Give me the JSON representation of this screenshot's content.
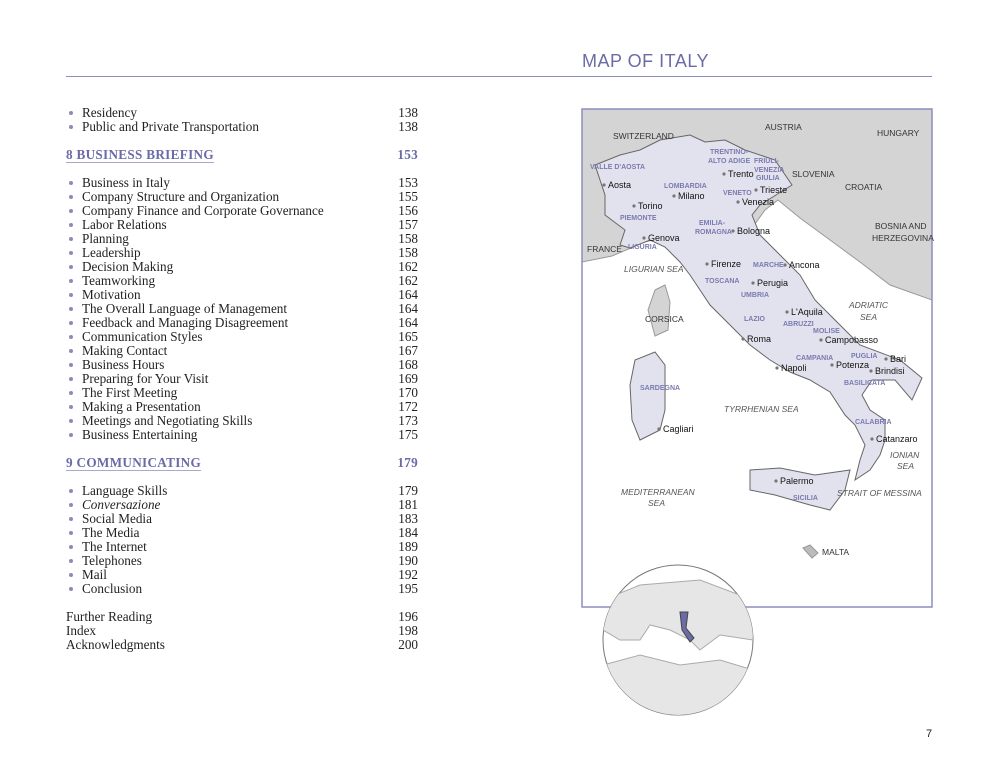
{
  "header": {
    "title": "MAP OF ITALY",
    "page_number": "7"
  },
  "toc": [
    {
      "type": "item",
      "label": "Residency",
      "page": "138"
    },
    {
      "type": "item",
      "label": "Public and Private Transportation",
      "page": "138"
    },
    {
      "type": "gap"
    },
    {
      "type": "chapter",
      "label": "8  BUSINESS BRIEFING",
      "page": "153"
    },
    {
      "type": "gap"
    },
    {
      "type": "item",
      "label": "Business in Italy",
      "page": "153"
    },
    {
      "type": "item",
      "label": "Company Structure and Organization",
      "page": "155"
    },
    {
      "type": "item",
      "label": "Company Finance and Corporate Governance",
      "page": "156"
    },
    {
      "type": "item",
      "label": "Labor Relations",
      "page": "157"
    },
    {
      "type": "item",
      "label": "Planning",
      "page": "158"
    },
    {
      "type": "item",
      "label": "Leadership",
      "page": "158"
    },
    {
      "type": "item",
      "label": "Decision Making",
      "page": "162"
    },
    {
      "type": "item",
      "label": "Teamworking",
      "page": "162"
    },
    {
      "type": "item",
      "label": "Motivation",
      "page": "164"
    },
    {
      "type": "item",
      "label": "The Overall Language of Management",
      "page": "164"
    },
    {
      "type": "item",
      "label": "Feedback and Managing Disagreement",
      "page": "164"
    },
    {
      "type": "item",
      "label": "Communication Styles",
      "page": "165"
    },
    {
      "type": "item",
      "label": "Making Contact",
      "page": "167"
    },
    {
      "type": "item",
      "label": "Business Hours",
      "page": "168"
    },
    {
      "type": "item",
      "label": "Preparing for Your Visit",
      "page": "169"
    },
    {
      "type": "item",
      "label": "The First Meeting",
      "page": "170"
    },
    {
      "type": "item",
      "label": "Making a Presentation",
      "page": "172"
    },
    {
      "type": "item",
      "label": "Meetings and Negotiating Skills",
      "page": "173"
    },
    {
      "type": "item",
      "label": "Business Entertaining",
      "page": "175"
    },
    {
      "type": "gap"
    },
    {
      "type": "chapter",
      "label": "9  COMMUNICATING",
      "page": "179"
    },
    {
      "type": "gap"
    },
    {
      "type": "item",
      "label": "Language Skills",
      "page": "179"
    },
    {
      "type": "item",
      "label": "Conversazione",
      "page": "181",
      "italic": true
    },
    {
      "type": "item",
      "label": "Social Media",
      "page": "183"
    },
    {
      "type": "item",
      "label": "The Media",
      "page": "184"
    },
    {
      "type": "item",
      "label": "The Internet",
      "page": "189"
    },
    {
      "type": "item",
      "label": "Telephones",
      "page": "190"
    },
    {
      "type": "item",
      "label": "Mail",
      "page": "192"
    },
    {
      "type": "item",
      "label": "Conclusion",
      "page": "195"
    },
    {
      "type": "gap"
    },
    {
      "type": "plain",
      "label": "Further Reading",
      "page": "196"
    },
    {
      "type": "plain",
      "label": "Index",
      "page": "198"
    },
    {
      "type": "plain",
      "label": "Acknowledgments",
      "page": "200"
    }
  ],
  "map": {
    "colors": {
      "italy": "#e2e2ee",
      "land": "#d4d4d4",
      "region_label": "#7a7ab0",
      "border": "#7c7ca8",
      "frame": "#8d8dbd"
    },
    "countries": [
      "SWITZERLAND",
      "AUSTRIA",
      "HUNGARY",
      "SLOVENIA",
      "CROATIA",
      "BOSNIA AND",
      "HERZEGOVINA",
      "FRANCE",
      "CORSICA",
      "MALTA"
    ],
    "seas": [
      "LIGURIAN SEA",
      "ADRIATIC",
      "SEA",
      "TYRRHENIAN SEA",
      "IONIAN",
      "SEA",
      "MEDITERRANEAN",
      "SEA",
      "STRAIT OF MESSINA"
    ],
    "regions": [
      "TRENTINO-",
      "ALTO ADIGE",
      "FRIULI-",
      "VENEZIA",
      "GIULIA",
      "VALLE D'AOSTA",
      "LOMBARDIA",
      "VENETO",
      "PIEMONTE",
      "EMILIA-",
      "ROMAGNA",
      "LIGURIA",
      "TOSCANA",
      "MARCHE",
      "UMBRIA",
      "LAZIO",
      "ABRUZZI",
      "MOLISE",
      "CAMPANIA",
      "PUGLIA",
      "BASILICATA",
      "SARDEGNA",
      "CALABRIA",
      "SICILIA"
    ],
    "cities": [
      "Trento",
      "Aosta",
      "Milano",
      "Trieste",
      "Venezia",
      "Torino",
      "Bologna",
      "Genova",
      "Firenze",
      "Ancona",
      "Perugia",
      "L'Aquila",
      "Roma",
      "Campobasso",
      "Bari",
      "Napoli",
      "Potenza",
      "Brindisi",
      "Cagliari",
      "Catanzaro",
      "Palermo"
    ]
  }
}
